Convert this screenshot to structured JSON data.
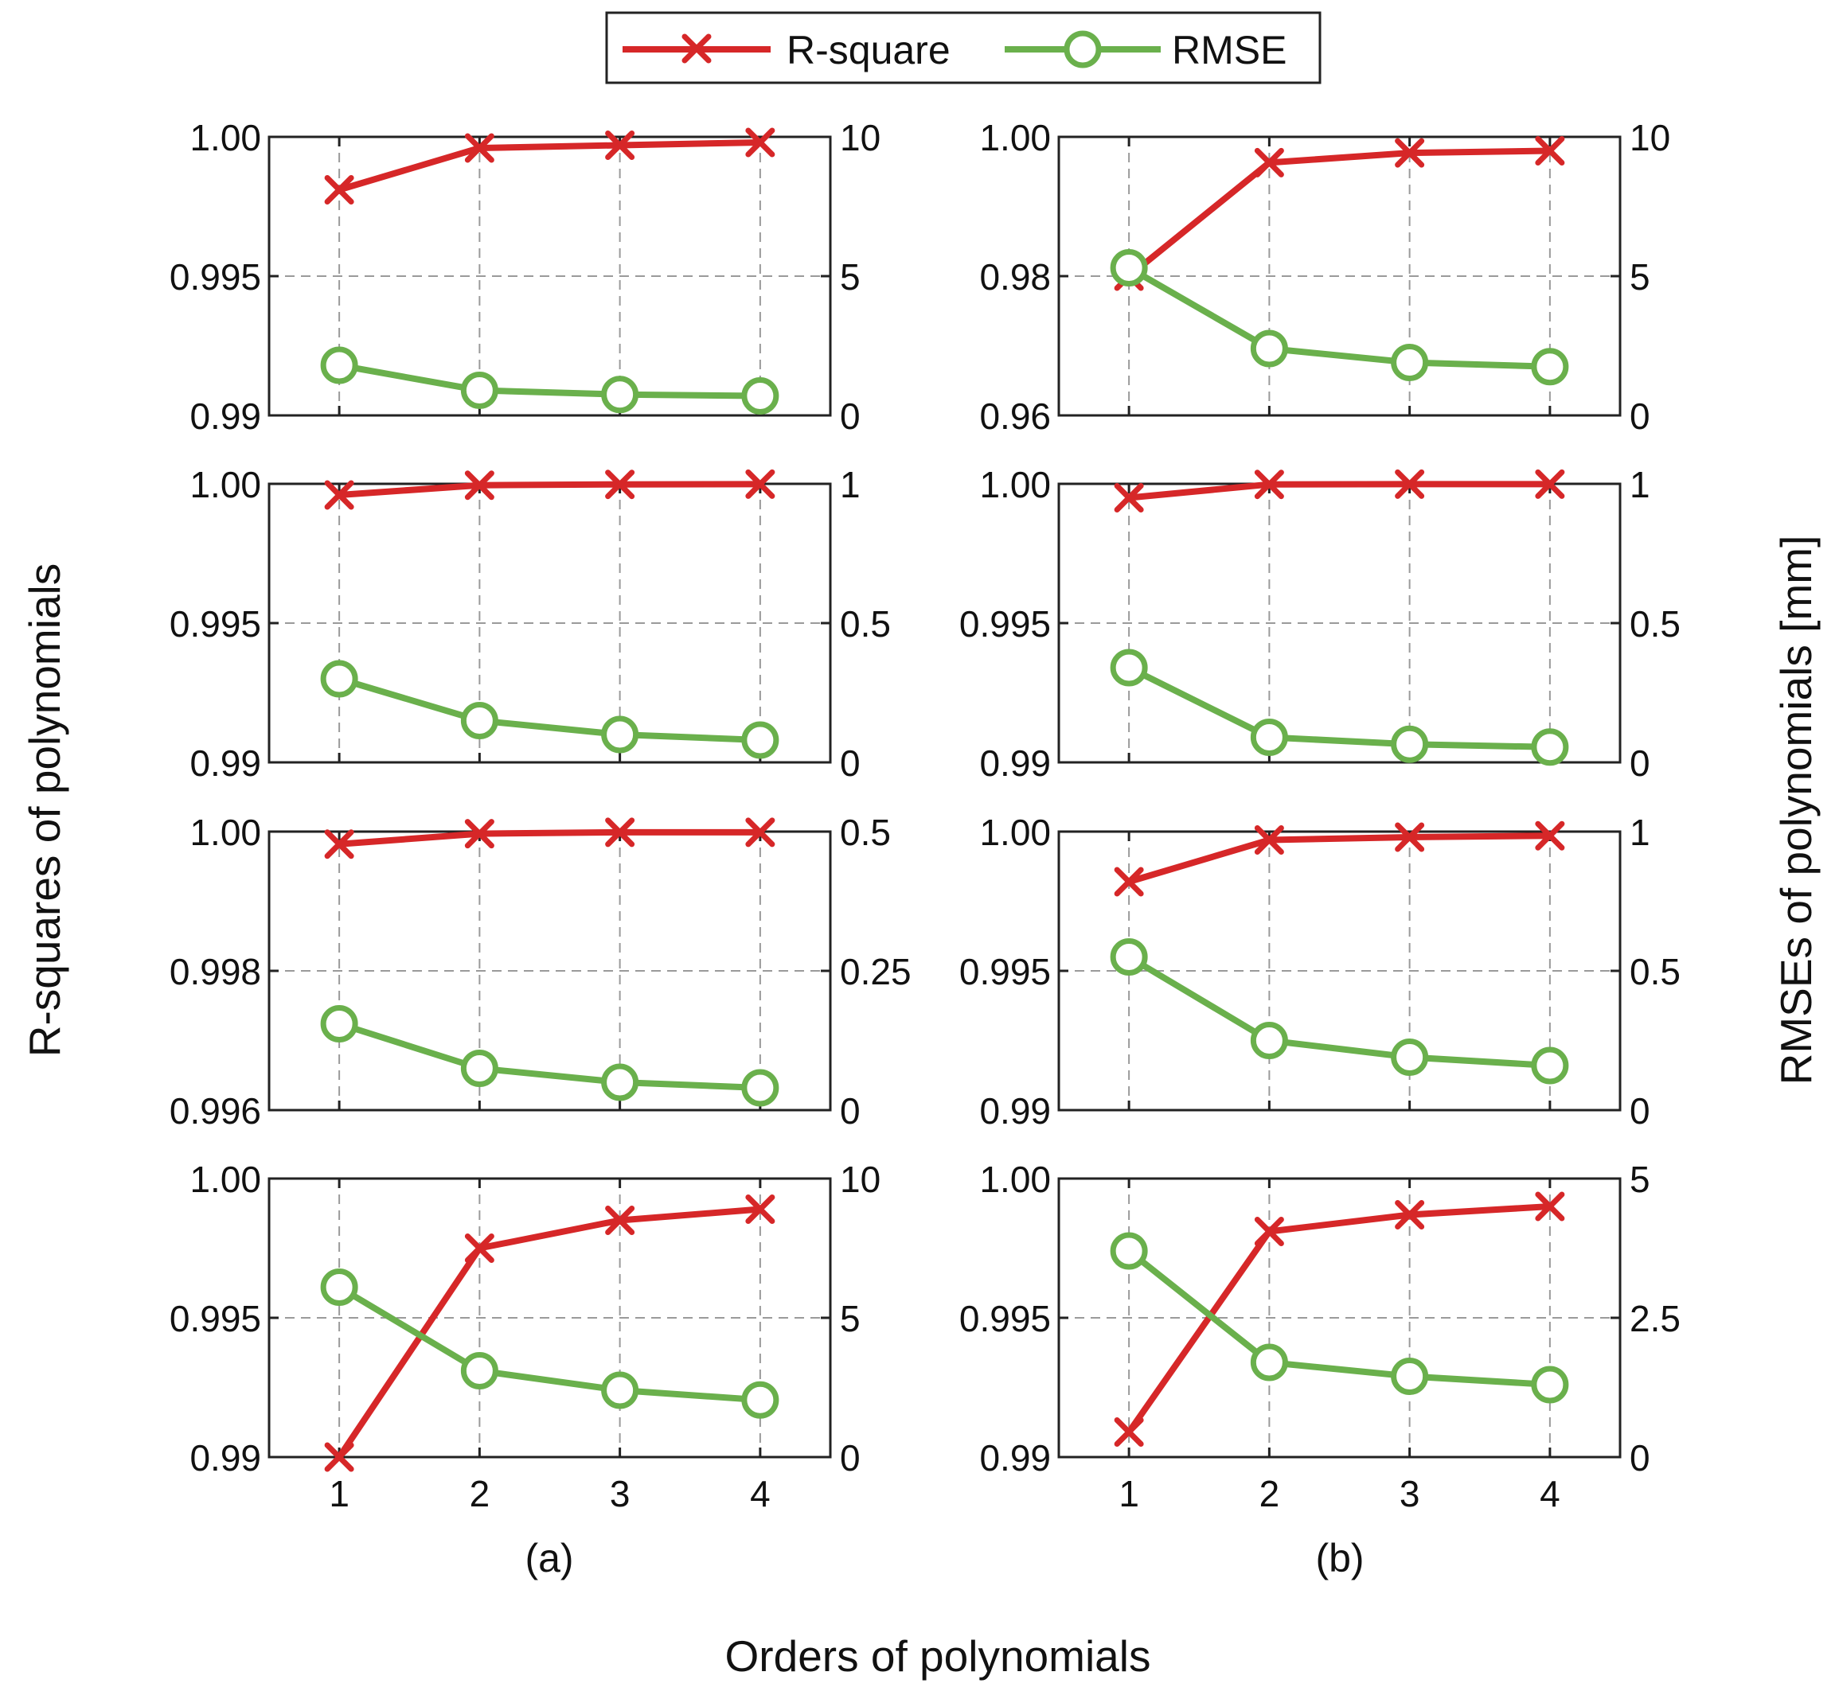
{
  "legend": {
    "entries": [
      {
        "label": "R-square",
        "color": "#d62728",
        "marker": "x"
      },
      {
        "label": "RMSE",
        "color": "#6ab04c",
        "marker": "circle"
      }
    ]
  },
  "axis_labels": {
    "left": "R-squares of polynomials",
    "right": "RMSEs of polynomials [mm]",
    "bottom": "Orders of polynomials"
  },
  "column_labels": [
    "(a)",
    "(b)"
  ],
  "chart_data": [
    {
      "type": "line",
      "column": "(a)",
      "row": 1,
      "x": [
        1,
        2,
        3,
        4
      ],
      "left_ylim": [
        0.99,
        1.0
      ],
      "left_ticks": [
        "0.99",
        "0.995",
        "1.00"
      ],
      "right_ylim": [
        0,
        10
      ],
      "right_ticks": [
        "0",
        "5",
        "10"
      ],
      "grid": true,
      "series": [
        {
          "name": "R-square",
          "axis": "left",
          "values": [
            0.9981,
            0.9996,
            0.9997,
            0.9998
          ]
        },
        {
          "name": "RMSE",
          "axis": "right",
          "values": [
            1.8,
            0.9,
            0.75,
            0.7
          ]
        }
      ]
    },
    {
      "type": "line",
      "column": "(b)",
      "row": 1,
      "x": [
        1,
        2,
        3,
        4
      ],
      "left_ylim": [
        0.96,
        1.0
      ],
      "left_ticks": [
        "0.96",
        "0.98",
        "1.00"
      ],
      "right_ylim": [
        0,
        10
      ],
      "right_ticks": [
        "0",
        "5",
        "10"
      ],
      "grid": true,
      "series": [
        {
          "name": "R-square",
          "axis": "left",
          "values": [
            0.98,
            0.9963,
            0.9977,
            0.998
          ]
        },
        {
          "name": "RMSE",
          "axis": "right",
          "values": [
            5.3,
            2.4,
            1.9,
            1.75
          ]
        }
      ]
    },
    {
      "type": "line",
      "column": "(a)",
      "row": 2,
      "x": [
        1,
        2,
        3,
        4
      ],
      "left_ylim": [
        0.99,
        1.0
      ],
      "left_ticks": [
        "0.99",
        "0.995",
        "1.00"
      ],
      "right_ylim": [
        0,
        1
      ],
      "right_ticks": [
        "0",
        "0.5",
        "1"
      ],
      "grid": true,
      "series": [
        {
          "name": "R-square",
          "axis": "left",
          "values": [
            0.9996,
            0.99995,
            0.99998,
            0.99999
          ]
        },
        {
          "name": "RMSE",
          "axis": "right",
          "values": [
            0.3,
            0.15,
            0.1,
            0.08
          ]
        }
      ]
    },
    {
      "type": "line",
      "column": "(b)",
      "row": 2,
      "x": [
        1,
        2,
        3,
        4
      ],
      "left_ylim": [
        0.99,
        1.0
      ],
      "left_ticks": [
        "0.99",
        "0.995",
        "1.00"
      ],
      "right_ylim": [
        0,
        1
      ],
      "right_ticks": [
        "0",
        "0.5",
        "1"
      ],
      "grid": true,
      "series": [
        {
          "name": "R-square",
          "axis": "left",
          "values": [
            0.9995,
            0.99998,
            0.99999,
            0.99999
          ]
        },
        {
          "name": "RMSE",
          "axis": "right",
          "values": [
            0.34,
            0.09,
            0.065,
            0.055
          ]
        }
      ]
    },
    {
      "type": "line",
      "column": "(a)",
      "row": 3,
      "x": [
        1,
        2,
        3,
        4
      ],
      "left_ylim": [
        0.996,
        1.0
      ],
      "left_ticks": [
        "0.996",
        "0.998",
        "1.00"
      ],
      "right_ylim": [
        0,
        0.5
      ],
      "right_ticks": [
        "0",
        "0.25",
        "0.5"
      ],
      "grid": true,
      "series": [
        {
          "name": "R-square",
          "axis": "left",
          "values": [
            0.99982,
            0.99997,
            0.99999,
            0.99999
          ]
        },
        {
          "name": "RMSE",
          "axis": "right",
          "values": [
            0.155,
            0.075,
            0.05,
            0.04
          ]
        }
      ]
    },
    {
      "type": "line",
      "column": "(b)",
      "row": 3,
      "x": [
        1,
        2,
        3,
        4
      ],
      "left_ylim": [
        0.99,
        1.0
      ],
      "left_ticks": [
        "0.99",
        "0.995",
        "1.00"
      ],
      "right_ylim": [
        0,
        1
      ],
      "right_ticks": [
        "0",
        "0.5",
        "1"
      ],
      "grid": true,
      "series": [
        {
          "name": "R-square",
          "axis": "left",
          "values": [
            0.9982,
            0.9997,
            0.9998,
            0.99985
          ]
        },
        {
          "name": "RMSE",
          "axis": "right",
          "values": [
            0.55,
            0.25,
            0.19,
            0.16
          ]
        }
      ]
    },
    {
      "type": "line",
      "column": "(a)",
      "row": 4,
      "x": [
        1,
        2,
        3,
        4
      ],
      "left_ylim": [
        0.99,
        1.0
      ],
      "left_ticks": [
        "0.99",
        "0.995",
        "1.00"
      ],
      "right_ylim": [
        0,
        10
      ],
      "right_ticks": [
        "0",
        "5",
        "10"
      ],
      "grid": true,
      "x_tick_labels": [
        "1",
        "2",
        "3",
        "4"
      ],
      "series": [
        {
          "name": "R-square",
          "axis": "left",
          "values": [
            0.99,
            0.9975,
            0.9985,
            0.9989
          ]
        },
        {
          "name": "RMSE",
          "axis": "right",
          "values": [
            6.1,
            3.1,
            2.4,
            2.05
          ]
        }
      ]
    },
    {
      "type": "line",
      "column": "(b)",
      "row": 4,
      "x": [
        1,
        2,
        3,
        4
      ],
      "left_ylim": [
        0.99,
        1.0
      ],
      "left_ticks": [
        "0.99",
        "0.995",
        "1.00"
      ],
      "right_ylim": [
        0,
        5
      ],
      "right_ticks": [
        "0",
        "2.5",
        "5"
      ],
      "grid": true,
      "x_tick_labels": [
        "1",
        "2",
        "3",
        "4"
      ],
      "series": [
        {
          "name": "R-square",
          "axis": "left",
          "values": [
            0.9909,
            0.9981,
            0.9987,
            0.999
          ]
        },
        {
          "name": "RMSE",
          "axis": "right",
          "values": [
            3.7,
            1.7,
            1.45,
            1.3
          ]
        }
      ]
    }
  ]
}
